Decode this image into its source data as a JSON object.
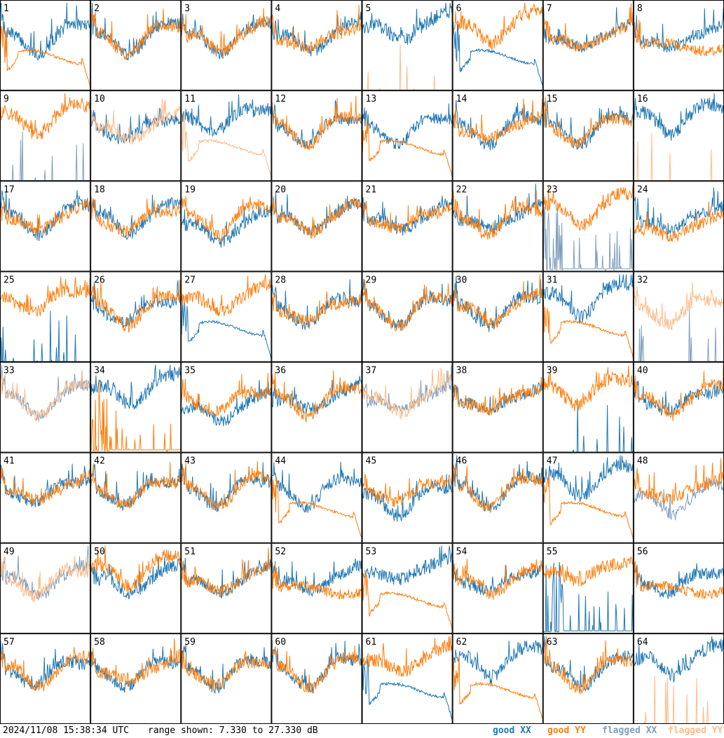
{
  "footer": {
    "timestamp": "2024/11/08 15:38:34 UTC",
    "range": "range shown: 7.330 to 27.330 dB"
  },
  "legend": [
    {
      "id": "good_xx",
      "label": "good XX",
      "color": "#1f77b4"
    },
    {
      "id": "good_yy",
      "label": "good YY",
      "color": "#ff7f0e"
    },
    {
      "id": "flagged_xx",
      "label": "flagged XX",
      "color": "#7f9fbf"
    },
    {
      "id": "flagged_yy",
      "label": "flagged YY",
      "color": "#ffbb88"
    }
  ],
  "chart_data": {
    "type": "line",
    "title": "",
    "ylim": [
      7.33,
      27.33
    ],
    "y_unit": "dB",
    "grid": false,
    "legend_position": "bottom-right",
    "panels": [
      {
        "label": "1",
        "xx": "good",
        "yy": "good",
        "xx_shape": "wavy",
        "yy_shape": "dip_drop"
      },
      {
        "label": "2",
        "xx": "good",
        "yy": "good",
        "xx_shape": "wavy",
        "yy_shape": "wavy"
      },
      {
        "label": "3",
        "xx": "good",
        "yy": "good",
        "xx_shape": "wavy",
        "yy_shape": "wavy"
      },
      {
        "label": "4",
        "xx": "good",
        "yy": "good",
        "xx_shape": "wavy",
        "yy_shape": "wavy"
      },
      {
        "label": "5",
        "xx": "good",
        "yy": "flagged",
        "xx_shape": "wavy_high",
        "yy_shape": "spikes"
      },
      {
        "label": "6",
        "xx": "good",
        "yy": "good",
        "xx_shape": "dip_drop",
        "yy_shape": "wavy_high"
      },
      {
        "label": "7",
        "xx": "good",
        "yy": "good",
        "xx_shape": "wavy",
        "yy_shape": "wavy"
      },
      {
        "label": "8",
        "xx": "good",
        "yy": "good",
        "xx_shape": "wavy",
        "yy_shape": "flat_mid"
      },
      {
        "label": "9",
        "xx": "flagged",
        "yy": "good",
        "xx_shape": "spikes",
        "yy_shape": "wavy_high"
      },
      {
        "label": "10",
        "xx": "good",
        "yy": "flagged",
        "xx_shape": "wavy",
        "yy_shape": "wavy"
      },
      {
        "label": "11",
        "xx": "good",
        "yy": "flagged",
        "xx_shape": "wavy_high",
        "yy_shape": "dip_drop"
      },
      {
        "label": "12",
        "xx": "good",
        "yy": "good",
        "xx_shape": "wavy",
        "yy_shape": "wavy"
      },
      {
        "label": "13",
        "xx": "good",
        "yy": "good",
        "xx_shape": "wavy",
        "yy_shape": "dip_drop"
      },
      {
        "label": "14",
        "xx": "good",
        "yy": "good",
        "xx_shape": "wavy",
        "yy_shape": "wavy"
      },
      {
        "label": "15",
        "xx": "good",
        "yy": "good",
        "xx_shape": "wavy",
        "yy_shape": "wavy"
      },
      {
        "label": "16",
        "xx": "good",
        "yy": "flagged",
        "xx_shape": "wavy_high",
        "yy_shape": "spikes"
      },
      {
        "label": "17",
        "xx": "good",
        "yy": "good",
        "xx_shape": "wavy",
        "yy_shape": "wavy"
      },
      {
        "label": "18",
        "xx": "good",
        "yy": "good",
        "xx_shape": "wavy",
        "yy_shape": "wavy"
      },
      {
        "label": "19",
        "xx": "good",
        "yy": "good",
        "xx_shape": "wavy_low",
        "yy_shape": "wavy"
      },
      {
        "label": "20",
        "xx": "good",
        "yy": "good",
        "xx_shape": "wavy",
        "yy_shape": "wavy"
      },
      {
        "label": "21",
        "xx": "good",
        "yy": "good",
        "xx_shape": "wavy",
        "yy_shape": "wavy"
      },
      {
        "label": "22",
        "xx": "good",
        "yy": "good",
        "xx_shape": "wavy",
        "yy_shape": "wavy"
      },
      {
        "label": "23",
        "xx": "flagged",
        "yy": "good",
        "xx_shape": "spikes_dense",
        "yy_shape": "wavy_high"
      },
      {
        "label": "24",
        "xx": "good",
        "yy": "good",
        "xx_shape": "wavy",
        "yy_shape": "wavy_low"
      },
      {
        "label": "25",
        "xx": "good",
        "yy": "good",
        "xx_shape": "spikes",
        "yy_shape": "wavy_high"
      },
      {
        "label": "26",
        "xx": "good",
        "yy": "good",
        "xx_shape": "wavy",
        "yy_shape": "wavy"
      },
      {
        "label": "27",
        "xx": "good",
        "yy": "good",
        "xx_shape": "dip_drop",
        "yy_shape": "wavy_high"
      },
      {
        "label": "28",
        "xx": "good",
        "yy": "good",
        "xx_shape": "wavy",
        "yy_shape": "wavy"
      },
      {
        "label": "29",
        "xx": "good",
        "yy": "good",
        "xx_shape": "wavy",
        "yy_shape": "wavy"
      },
      {
        "label": "30",
        "xx": "good",
        "yy": "good",
        "xx_shape": "wavy",
        "yy_shape": "wavy"
      },
      {
        "label": "31",
        "xx": "good",
        "yy": "good",
        "xx_shape": "wavy_high",
        "yy_shape": "dip_drop"
      },
      {
        "label": "32",
        "xx": "flagged",
        "yy": "flagged",
        "xx_shape": "spikes",
        "yy_shape": "wavy"
      },
      {
        "label": "33",
        "xx": "flagged",
        "yy": "flagged",
        "xx_shape": "wavy",
        "yy_shape": "wavy"
      },
      {
        "label": "34",
        "xx": "good",
        "yy": "good",
        "xx_shape": "wavy_high",
        "yy_shape": "spikes_dense"
      },
      {
        "label": "35",
        "xx": "good",
        "yy": "good",
        "xx_shape": "wavy_low",
        "yy_shape": "wavy"
      },
      {
        "label": "36",
        "xx": "good",
        "yy": "good",
        "xx_shape": "wavy",
        "yy_shape": "wavy"
      },
      {
        "label": "37",
        "xx": "flagged",
        "yy": "flagged",
        "xx_shape": "wavy",
        "yy_shape": "wavy"
      },
      {
        "label": "38",
        "xx": "good",
        "yy": "good",
        "xx_shape": "wavy",
        "yy_shape": "wavy"
      },
      {
        "label": "39",
        "xx": "good",
        "yy": "good",
        "xx_shape": "spikes",
        "yy_shape": "wavy_high"
      },
      {
        "label": "40",
        "xx": "good",
        "yy": "good",
        "xx_shape": "wavy",
        "yy_shape": "wavy"
      },
      {
        "label": "41",
        "xx": "good",
        "yy": "good",
        "xx_shape": "wavy",
        "yy_shape": "wavy"
      },
      {
        "label": "42",
        "xx": "good",
        "yy": "good",
        "xx_shape": "wavy",
        "yy_shape": "wavy"
      },
      {
        "label": "43",
        "xx": "good",
        "yy": "good",
        "xx_shape": "wavy",
        "yy_shape": "wavy"
      },
      {
        "label": "44",
        "xx": "good",
        "yy": "good",
        "xx_shape": "wavy",
        "yy_shape": "dip_drop"
      },
      {
        "label": "45",
        "xx": "good",
        "yy": "good",
        "xx_shape": "wavy_low",
        "yy_shape": "wavy"
      },
      {
        "label": "46",
        "xx": "good",
        "yy": "good",
        "xx_shape": "wavy",
        "yy_shape": "wavy"
      },
      {
        "label": "47",
        "xx": "good",
        "yy": "good",
        "xx_shape": "wavy_high",
        "yy_shape": "dip_drop"
      },
      {
        "label": "48",
        "xx": "flagged",
        "yy": "good",
        "xx_shape": "wavy_low",
        "yy_shape": "wavy"
      },
      {
        "label": "49",
        "xx": "flagged",
        "yy": "flagged",
        "xx_shape": "wavy",
        "yy_shape": "wavy"
      },
      {
        "label": "50",
        "xx": "good",
        "yy": "good",
        "xx_shape": "wavy",
        "yy_shape": "wavy_high"
      },
      {
        "label": "51",
        "xx": "good",
        "yy": "good",
        "xx_shape": "wavy",
        "yy_shape": "wavy"
      },
      {
        "label": "52",
        "xx": "good",
        "yy": "good",
        "xx_shape": "wavy",
        "yy_shape": "flat_mid"
      },
      {
        "label": "53",
        "xx": "good",
        "yy": "good",
        "xx_shape": "wavy_high",
        "yy_shape": "dip_drop"
      },
      {
        "label": "54",
        "xx": "good",
        "yy": "good",
        "xx_shape": "wavy",
        "yy_shape": "wavy"
      },
      {
        "label": "55",
        "xx": "good",
        "yy": "good",
        "xx_shape": "spikes_dense",
        "yy_shape": "wavy_high"
      },
      {
        "label": "56",
        "xx": "good",
        "yy": "good",
        "xx_shape": "wavy",
        "yy_shape": "flat_mid"
      },
      {
        "label": "57",
        "xx": "good",
        "yy": "good",
        "xx_shape": "wavy",
        "yy_shape": "wavy"
      },
      {
        "label": "58",
        "xx": "good",
        "yy": "good",
        "xx_shape": "wavy",
        "yy_shape": "wavy"
      },
      {
        "label": "59",
        "xx": "good",
        "yy": "good",
        "xx_shape": "wavy",
        "yy_shape": "wavy"
      },
      {
        "label": "60",
        "xx": "good",
        "yy": "good",
        "xx_shape": "wavy",
        "yy_shape": "wavy"
      },
      {
        "label": "61",
        "xx": "good",
        "yy": "good",
        "xx_shape": "dip_drop",
        "yy_shape": "wavy_high"
      },
      {
        "label": "62",
        "xx": "good",
        "yy": "good",
        "xx_shape": "wavy_high",
        "yy_shape": "dip_drop"
      },
      {
        "label": "63",
        "xx": "good",
        "yy": "good",
        "xx_shape": "wavy",
        "yy_shape": "wavy"
      },
      {
        "label": "64",
        "xx": "good",
        "yy": "flagged",
        "xx_shape": "wavy_high",
        "yy_shape": "spikes"
      }
    ]
  }
}
